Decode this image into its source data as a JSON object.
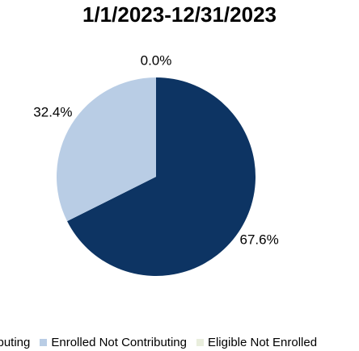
{
  "chart_data": {
    "type": "pie",
    "title": "1/1/2023-12/31/2023",
    "slices": [
      {
        "name": "Enrolled Contributing",
        "label": "67.6%",
        "value": 67.6,
        "color": "#0d3463"
      },
      {
        "name": "Enrolled Not Contributing",
        "label": "32.4%",
        "value": 32.4,
        "color": "#b9cde5"
      },
      {
        "name": "Eligible Not Enrolled",
        "label": "0.0%",
        "value": 0.0,
        "color": "#e9eedd"
      }
    ],
    "legend": {
      "placement": "bottom",
      "entries": [
        "Enrolled Contributing",
        "Enrolled Not Contributing",
        "Eligible Not Enrolled"
      ],
      "visible_text": [
        "tributing",
        "Enrolled Not Contributing",
        "Eligible Not Enrolled"
      ]
    }
  }
}
